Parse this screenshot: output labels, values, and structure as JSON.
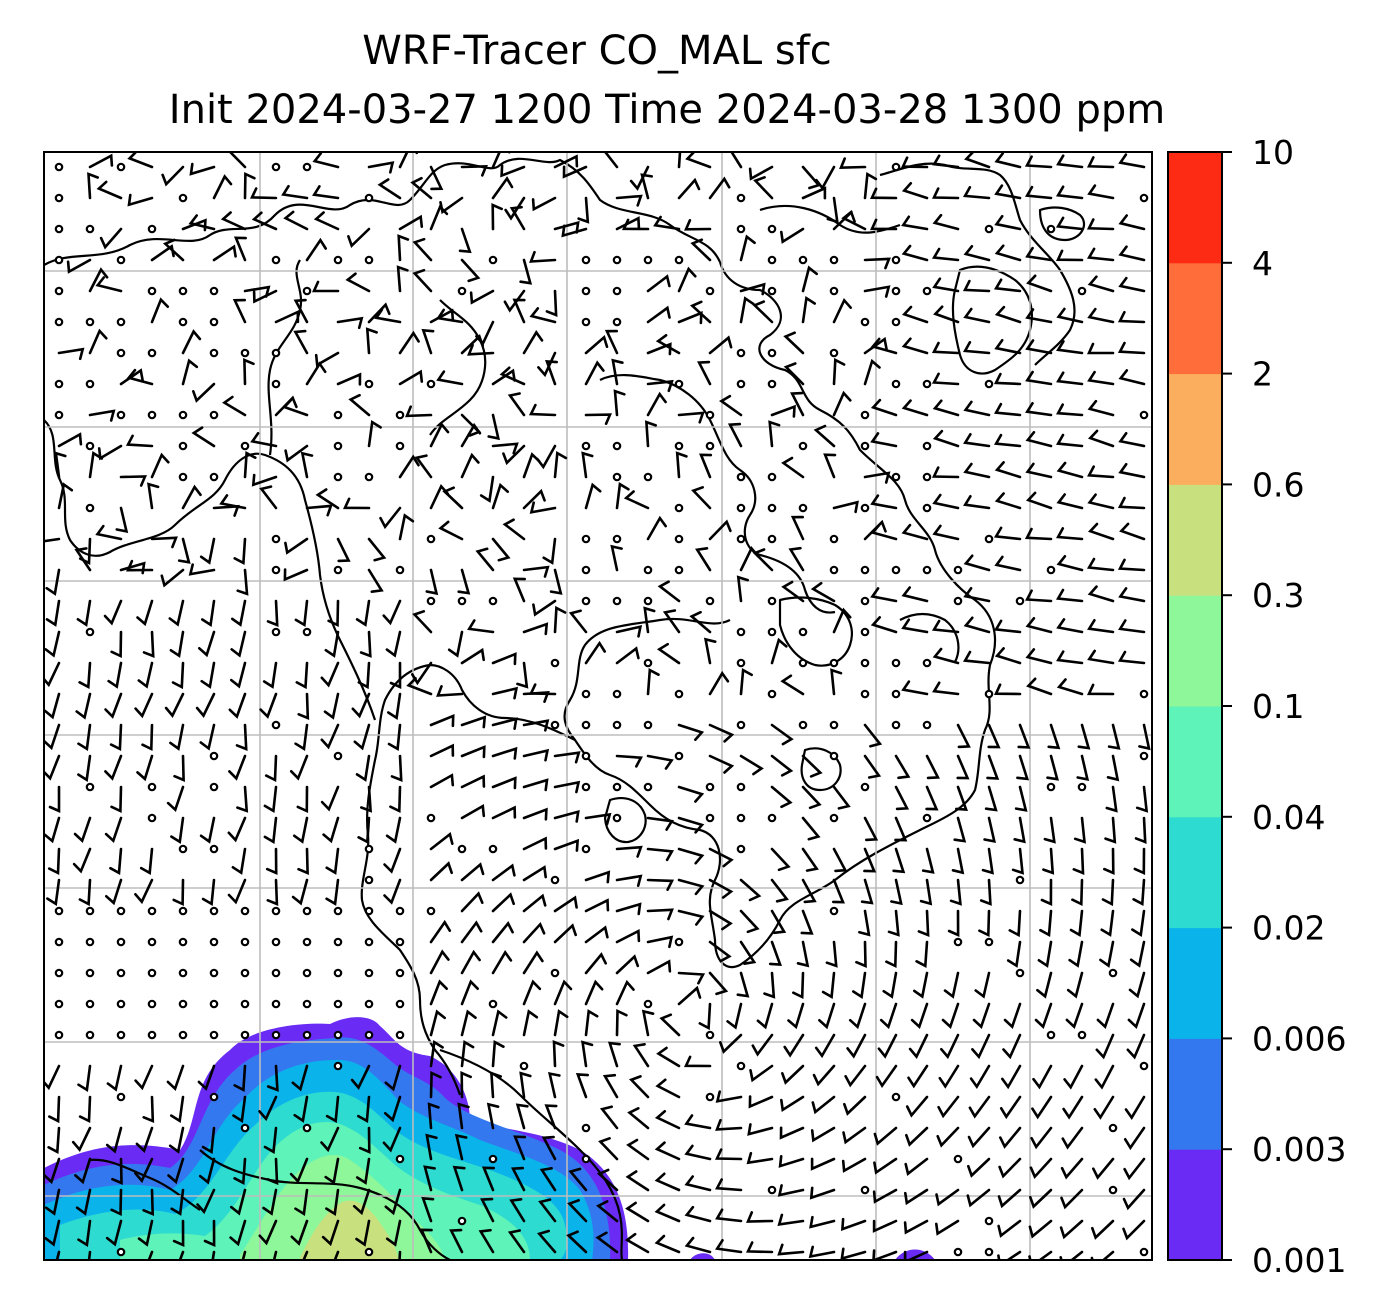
{
  "title": {
    "line1": "WRF-Tracer CO_MAL sfc",
    "line2": "Init 2024-03-27 1200 Time 2024-03-28 1300 ppm"
  },
  "colorbar": {
    "levels": [
      "0.001",
      "0.003",
      "0.006",
      "0.02",
      "0.04",
      "0.1",
      "0.3",
      "0.6",
      "2",
      "4",
      "10"
    ],
    "colors": [
      "#6a2cf5",
      "#3478f0",
      "#0ab3ea",
      "#2edbd0",
      "#5ef3b8",
      "#8ef79a",
      "#c9e07e",
      "#fbaf5e",
      "#ff6e3a",
      "#fd2a14"
    ]
  },
  "map": {
    "background": "#ffffff",
    "gridline_color": "#bdbdbd",
    "coastline_color": "#000000",
    "wind_barb_color": "#000000"
  }
}
